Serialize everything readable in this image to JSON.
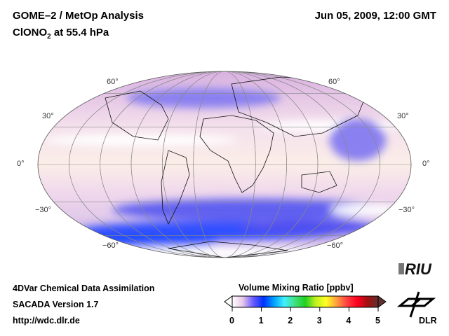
{
  "header": {
    "title": "GOME–2 / MetOp Analysis",
    "species_main": "ClONO",
    "species_sub": "2",
    "species_rest": " at 55.4 hPa",
    "datetime": "Jun 05, 2009, 12:00 GMT"
  },
  "map": {
    "projection": "Mollweide",
    "lat_labels_left": [
      "60°",
      "30°",
      "0°",
      "−30°",
      "−60°"
    ],
    "lat_labels_right": [
      "60°",
      "30°",
      "0°",
      "−30°",
      "−60°"
    ]
  },
  "footer": {
    "line1": "4DVar Chemical Data Assimilation",
    "line2": "SACADA Version 1.7",
    "line3": "http://wdc.dlr.de"
  },
  "colorbar": {
    "title": "Volume Mixing Ratio [ppbv]",
    "ticks": [
      "0",
      "1",
      "2",
      "3",
      "4",
      "5"
    ],
    "colors": [
      "#ffffff",
      "#e8c8e8",
      "#6a5cff",
      "#0030ff",
      "#00a0ff",
      "#40f0ff",
      "#40e080",
      "#20d020",
      "#c0f020",
      "#ffff20",
      "#ffa040",
      "#ff4040",
      "#ff0020",
      "#a01010",
      "#603030"
    ]
  },
  "logos": {
    "riu": "RIU",
    "dlr": "DLR"
  }
}
